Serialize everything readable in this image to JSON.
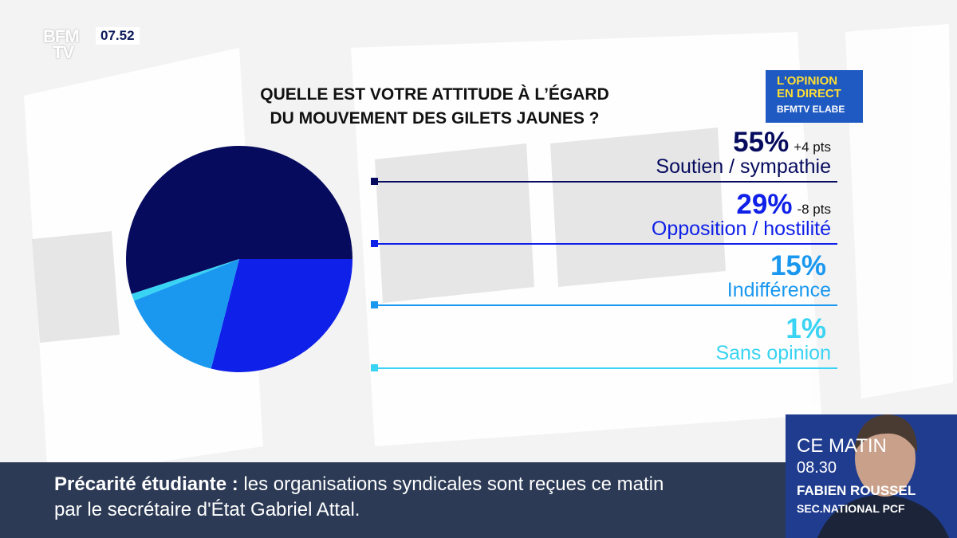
{
  "header": {
    "logo_line1": "BFM",
    "logo_line2": "TV",
    "clock": "07.52"
  },
  "badge": {
    "line1": "L'OPINION",
    "line2": "EN DIRECT",
    "line3": "BFMTV ELABE"
  },
  "colors": {
    "soutien": "#060b5e",
    "opposition": "#0f20e8",
    "indifference": "#1a98f0",
    "sans_opinion": "#39d3f3"
  },
  "chart_data": {
    "type": "pie",
    "title": "QUELLE EST VOTRE ATTITUDE À L’ÉGARD DU MOUVEMENT DES GILETS JAUNES ?",
    "title_lines": [
      "QUELLE EST VOTRE ATTITUDE À L’ÉGARD",
      "DU MOUVEMENT DES GILETS JAUNES ?"
    ],
    "categories": [
      "Soutien / sympathie",
      "Opposition / hostilité",
      "Indifférence",
      "Sans opinion"
    ],
    "values": [
      55,
      29,
      15,
      1
    ],
    "value_labels": [
      "55%",
      "29%",
      "15%",
      "1%"
    ],
    "deltas": [
      "+4 pts",
      "-8 pts",
      "",
      ""
    ],
    "colors": [
      "#060b5e",
      "#0f20e8",
      "#1a98f0",
      "#39d3f3"
    ]
  },
  "ticker": {
    "topic": "Précarité étudiante",
    "separator": " : ",
    "text_line1": "les organisations syndicales sont reçues ce matin",
    "text_line2": "par le secrétaire d'État Gabriel Attal."
  },
  "guest": {
    "time_label": "CE MATIN",
    "time": "08.30",
    "name": "FABIEN ROUSSEL",
    "role": "SEC.NATIONAL PCF"
  }
}
